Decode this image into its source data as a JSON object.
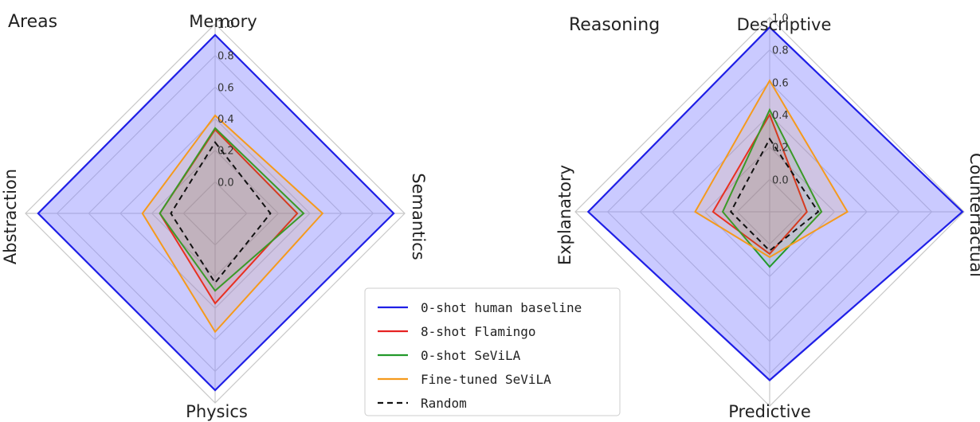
{
  "chart_data": [
    {
      "type": "radar",
      "title": "Areas",
      "axes": [
        "Memory",
        "Semantics",
        "Physics",
        "Abstraction"
      ],
      "rlim": [
        -0.2,
        1.0
      ],
      "rticks": [
        "0.0",
        "0.2",
        "0.4",
        "0.6",
        "0.8",
        "1.0"
      ],
      "rtick_values": [
        0.0,
        0.2,
        0.4,
        0.6,
        0.8,
        1.0
      ],
      "grid": true,
      "series": [
        {
          "name": "0-shot human baseline",
          "values": [
            0.93,
            0.93,
            0.92,
            0.92
          ]
        },
        {
          "name": "8-shot Flamingo",
          "values": [
            0.33,
            0.32,
            0.37,
            0.15
          ]
        },
        {
          "name": "0-shot SeViLA",
          "values": [
            0.34,
            0.36,
            0.29,
            0.15
          ]
        },
        {
          "name": "Fine-tuned SeViLA",
          "values": [
            0.42,
            0.48,
            0.55,
            0.26
          ]
        },
        {
          "name": "Random",
          "values": [
            0.25,
            0.15,
            0.24,
            0.08
          ]
        }
      ]
    },
    {
      "type": "radar",
      "title": "Reasoning",
      "axes": [
        "Descriptive",
        "Counterfactual",
        "Predictive",
        "Explanatory"
      ],
      "rlim": [
        -0.2,
        1.0
      ],
      "rticks": [
        "0.0",
        "0.2",
        "0.4",
        "0.6",
        "0.8",
        "1.0"
      ],
      "rtick_values": [
        0.0,
        0.2,
        0.4,
        0.6,
        0.8,
        1.0
      ],
      "grid": true,
      "series": [
        {
          "name": "0-shot human baseline",
          "values": [
            0.94,
            0.99,
            0.84,
            0.92
          ]
        },
        {
          "name": "8-shot Flamingo",
          "values": [
            0.4,
            0.03,
            0.06,
            0.15
          ]
        },
        {
          "name": "0-shot SeViLA",
          "values": [
            0.43,
            0.12,
            0.14,
            0.09
          ]
        },
        {
          "name": "Fine-tuned SeViLA",
          "values": [
            0.61,
            0.28,
            0.08,
            0.26
          ]
        },
        {
          "name": "Random",
          "values": [
            0.25,
            0.1,
            0.04,
            0.04
          ]
        }
      ]
    }
  ],
  "legend": {
    "position": "bottom-center",
    "entries": [
      {
        "label": "0-shot human baseline",
        "color": "#1f1fe6",
        "dash": "solid"
      },
      {
        "label": "8-shot Flamingo",
        "color": "#e62222",
        "dash": "solid"
      },
      {
        "label": "0-shot SeViLA",
        "color": "#22992a",
        "dash": "solid"
      },
      {
        "label": "Fine-tuned SeViLA",
        "color": "#f59a1c",
        "dash": "solid"
      },
      {
        "label": "Random",
        "color": "#111111",
        "dash": "dashed"
      }
    ]
  },
  "colors": {
    "human": "#1f1fe6",
    "human_fill": "#8a8aff",
    "flamingo": "#e62222",
    "sevila": "#22992a",
    "finetuned": "#f59a1c",
    "random": "#111111",
    "grid": "#c8c8c8"
  }
}
